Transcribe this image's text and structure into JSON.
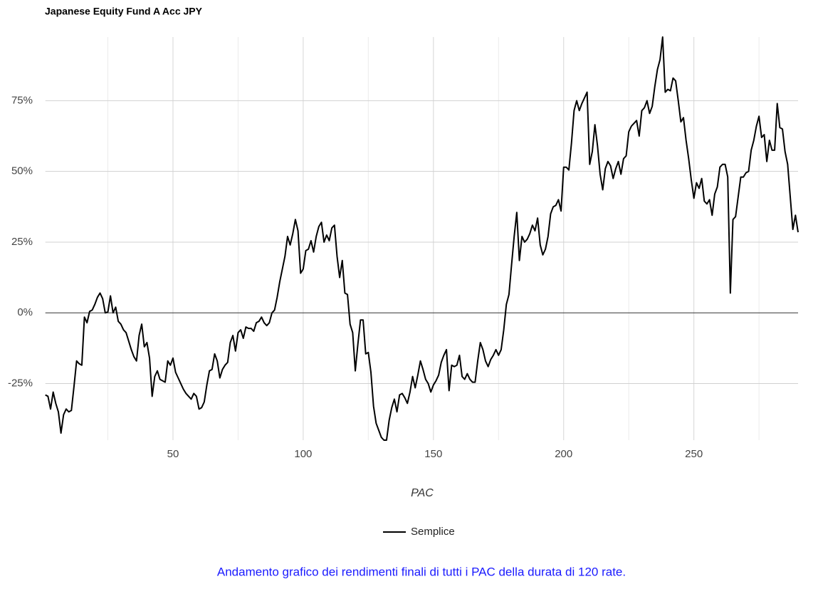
{
  "chart_data": {
    "type": "line",
    "title": "Japanese Equity Fund A Acc JPY",
    "x_label": "PAC",
    "caption": "Andamento grafico dei rendimenti finali di tutti i PAC della durata di 120 rate.",
    "x": [
      1,
      2,
      3,
      4,
      5,
      6,
      7,
      8,
      9,
      10,
      11,
      12,
      13,
      14,
      15,
      16,
      17,
      18,
      19,
      20,
      21,
      22,
      23,
      24,
      25,
      26,
      27,
      28,
      29,
      30,
      31,
      32,
      33,
      34,
      35,
      36,
      37,
      38,
      39,
      40,
      41,
      42,
      43,
      44,
      45,
      46,
      47,
      48,
      49,
      50,
      51,
      52,
      53,
      54,
      55,
      56,
      57,
      58,
      59,
      60,
      61,
      62,
      63,
      64,
      65,
      66,
      67,
      68,
      69,
      70,
      71,
      72,
      73,
      74,
      75,
      76,
      77,
      78,
      79,
      80,
      81,
      82,
      83,
      84,
      85,
      86,
      87,
      88,
      89,
      90,
      91,
      92,
      93,
      94,
      95,
      96,
      97,
      98,
      99,
      100,
      101,
      102,
      103,
      104,
      105,
      106,
      107,
      108,
      109,
      110,
      111,
      112,
      113,
      114,
      115,
      116,
      117,
      118,
      119,
      120,
      121,
      122,
      123,
      124,
      125,
      126,
      127,
      128,
      129,
      130,
      131,
      132,
      133,
      134,
      135,
      136,
      137,
      138,
      139,
      140,
      141,
      142,
      143,
      144,
      145,
      146,
      147,
      148,
      149,
      150,
      151,
      152,
      153,
      154,
      155,
      156,
      157,
      158,
      159,
      160,
      161,
      162,
      163,
      164,
      165,
      166,
      167,
      168,
      169,
      170,
      171,
      172,
      173,
      174,
      175,
      176,
      177,
      178,
      179,
      180,
      181,
      182,
      183,
      184,
      185,
      186,
      187,
      188,
      189,
      190,
      191,
      192,
      193,
      194,
      195,
      196,
      197,
      198,
      199,
      200,
      201,
      202,
      203,
      204,
      205,
      206,
      207,
      208,
      209,
      210,
      211,
      212,
      213,
      214,
      215,
      216,
      217,
      218,
      219,
      220,
      221,
      222,
      223,
      224,
      225,
      226,
      227,
      228,
      229,
      230,
      231,
      232,
      233,
      234,
      235,
      236,
      237,
      238,
      239,
      240,
      241,
      242,
      243,
      244,
      245,
      246,
      247,
      248,
      249,
      250,
      251,
      252,
      253,
      254,
      255,
      256,
      257,
      258,
      259,
      260,
      261,
      262,
      263,
      264,
      265,
      266,
      267,
      268,
      269,
      270,
      271,
      272,
      273,
      274,
      275,
      276,
      277,
      278,
      279,
      280,
      281,
      282,
      283,
      284,
      285,
      286,
      287,
      288,
      289,
      290
    ],
    "series": [
      {
        "name": "Semplice",
        "color": "#000000",
        "values": [
          -29,
          -29.5,
          -34,
          -28,
          -32,
          -35,
          -42.5,
          -36,
          -34,
          -35,
          -34.5,
          -26,
          -17,
          -18,
          -18.5,
          -1.5,
          -3.5,
          0.5,
          1,
          3,
          5.5,
          7,
          5,
          0,
          0.3,
          6,
          0,
          2,
          -3,
          -4,
          -6,
          -7,
          -10,
          -13,
          -15.5,
          -17,
          -8,
          -4,
          -12,
          -10.5,
          -16,
          -29.5,
          -22.5,
          -20.5,
          -23.5,
          -24,
          -24.5,
          -17,
          -18.5,
          -16,
          -21,
          -23,
          -25,
          -27,
          -28.5,
          -29.5,
          -30.5,
          -28.5,
          -29.5,
          -34,
          -33.5,
          -31.5,
          -25.5,
          -20.5,
          -20,
          -14.5,
          -17,
          -23,
          -20,
          -18.5,
          -17.5,
          -10.5,
          -8,
          -13.5,
          -7,
          -6,
          -9,
          -5,
          -5.5,
          -5.5,
          -6.5,
          -3.5,
          -3,
          -1.5,
          -3.5,
          -4.5,
          -3.5,
          0,
          1,
          5.5,
          11,
          15.5,
          20,
          27,
          24,
          28,
          33,
          29,
          14,
          15.5,
          22,
          22.5,
          25.5,
          21.5,
          27,
          30.5,
          32,
          25,
          27.5,
          25.5,
          30,
          31,
          20,
          12.5,
          18.5,
          7,
          6.5,
          -4,
          -7,
          -20.5,
          -11,
          -2.5,
          -2.5,
          -14.5,
          -14,
          -21,
          -33,
          -39,
          -41.5,
          -44,
          -45,
          -45,
          -38,
          -33.5,
          -30.5,
          -35,
          -29,
          -28.5,
          -30,
          -32,
          -28,
          -22.5,
          -26.5,
          -22,
          -17,
          -20,
          -23.5,
          -25,
          -28,
          -25.5,
          -24,
          -22,
          -17.5,
          -15,
          -13,
          -27.5,
          -18.5,
          -19,
          -18.5,
          -15,
          -22.5,
          -23.5,
          -21.5,
          -23.5,
          -24.5,
          -24.5,
          -17,
          -10.5,
          -13,
          -17,
          -19,
          -16.5,
          -15,
          -13,
          -15,
          -13,
          -6,
          3,
          6.5,
          17,
          27,
          35.5,
          18.5,
          27,
          25,
          26,
          28,
          31,
          29,
          33.5,
          24,
          20.5,
          22.5,
          27,
          35,
          37.5,
          38,
          40,
          36,
          51.5,
          51.5,
          50.5,
          60,
          71.5,
          75,
          71.5,
          74,
          76,
          78,
          52.5,
          57,
          66.5,
          59,
          49,
          43.5,
          51,
          53.5,
          52,
          47.5,
          51,
          53.5,
          49,
          54.5,
          55.5,
          64,
          66,
          67,
          68,
          62.5,
          71.5,
          72.5,
          75,
          70.5,
          73,
          80,
          86,
          89.5,
          97.5,
          78,
          79,
          78.5,
          83,
          82,
          75,
          67.5,
          69,
          61,
          54.5,
          47,
          40.5,
          46,
          44,
          47.5,
          39.5,
          38.5,
          40,
          34.5,
          42,
          44.5,
          51.5,
          52.5,
          52.5,
          48,
          7,
          33,
          34,
          41,
          48,
          48,
          49.5,
          50,
          57.5,
          61,
          66,
          69.5,
          62,
          63,
          53.5,
          61,
          57.5,
          57.5,
          74,
          65.5,
          65,
          57,
          52.5,
          41,
          29.5,
          34.5,
          28.5
        ]
      }
    ],
    "xlim": [
      1,
      290
    ],
    "xticks": [
      50,
      100,
      150,
      200,
      250
    ],
    "x_minor_ticks": [
      25,
      75,
      125,
      175,
      225,
      275
    ],
    "ylim": [
      -45,
      97.5
    ],
    "yticks": [
      {
        "value": -25,
        "label": "-25%"
      },
      {
        "value": 0,
        "label": "0%"
      },
      {
        "value": 25,
        "label": "25%"
      },
      {
        "value": 50,
        "label": "50%"
      },
      {
        "value": 75,
        "label": "75%"
      }
    ],
    "grid": true,
    "legend": "bottom"
  }
}
